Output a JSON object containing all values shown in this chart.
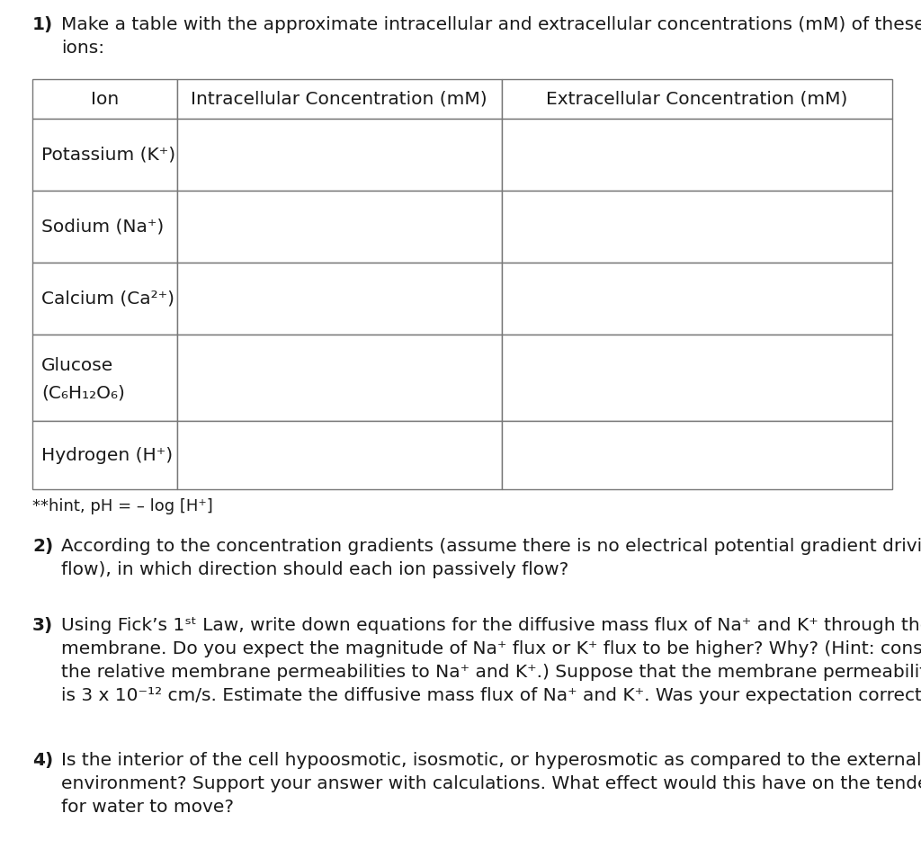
{
  "background_color": "#ffffff",
  "text_color": "#1a1a1a",
  "table_border_color": "#777777",
  "table_headers": [
    "Ion",
    "Intracellular Concentration (mM)",
    "Extracellular Concentration (mM)"
  ],
  "table_rows": [
    "Potassium (K⁺)",
    "Sodium (Na⁺)",
    "Calcium (Ca²⁺)",
    "Glucose\n(C₆H₁₂O₆)",
    "Hydrogen (H⁺)"
  ],
  "hint_text": "**hint, pH = – log [H⁺]",
  "font_size_body": 14.5,
  "font_size_bold": 14.5,
  "font_size_hint": 13.0
}
